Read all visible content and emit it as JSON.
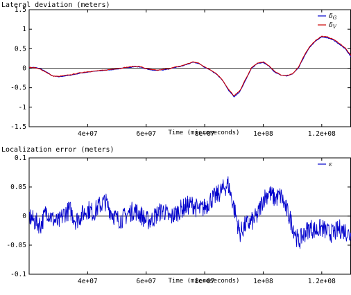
{
  "colors": {
    "series_g": "#0000cc",
    "series_v": "#cc0000",
    "axis": "#000000"
  },
  "chart_data": [
    {
      "type": "line",
      "title": "Lateral deviation (meters)",
      "xlabel": "Time (microseconds)",
      "ylabel": "",
      "xlim": [
        20000000,
        130000000
      ],
      "ylim": [
        -1.5,
        1.5
      ],
      "x_ticks": [
        40000000,
        60000000,
        80000000,
        100000000,
        120000000
      ],
      "x_tick_labels": [
        "4e+07",
        "6e+07",
        "8e+07",
        "1e+08",
        "1.2e+08"
      ],
      "y_ticks": [
        -1.5,
        -1,
        -0.5,
        0,
        0.5,
        1,
        1.5
      ],
      "y_tick_labels": [
        "-1.5",
        "-1",
        "-0.5",
        "0",
        "0.5",
        "1",
        "1.5"
      ],
      "zero_line": true,
      "grid": false,
      "legend_position": "top-right",
      "series": [
        {
          "name": "δG",
          "legend_main": "δ",
          "legend_sub": "G",
          "color": "#0000cc",
          "x": [
            20000000,
            22000000,
            24000000,
            26000000,
            28000000,
            30000000,
            32000000,
            34000000,
            36000000,
            38000000,
            40000000,
            42000000,
            44000000,
            46000000,
            48000000,
            50000000,
            52000000,
            54000000,
            56000000,
            58000000,
            60000000,
            62000000,
            64000000,
            66000000,
            68000000,
            70000000,
            72000000,
            74000000,
            76000000,
            78000000,
            80000000,
            82000000,
            84000000,
            86000000,
            88000000,
            90000000,
            92000000,
            94000000,
            96000000,
            98000000,
            100000000,
            102000000,
            104000000,
            106000000,
            108000000,
            110000000,
            112000000,
            114000000,
            116000000,
            118000000,
            120000000,
            122000000,
            124000000,
            126000000,
            128000000,
            130000000
          ],
          "y": [
            0.02,
            0.02,
            -0.02,
            -0.1,
            -0.2,
            -0.22,
            -0.2,
            -0.18,
            -0.15,
            -0.12,
            -0.1,
            -0.08,
            -0.07,
            -0.05,
            -0.04,
            -0.02,
            0.0,
            0.02,
            0.04,
            0.03,
            -0.02,
            -0.05,
            -0.05,
            -0.04,
            -0.02,
            0.02,
            0.05,
            0.1,
            0.15,
            0.12,
            0.02,
            -0.05,
            -0.15,
            -0.3,
            -0.55,
            -0.73,
            -0.6,
            -0.3,
            0.0,
            0.12,
            0.15,
            0.05,
            -0.1,
            -0.18,
            -0.2,
            -0.15,
            0.0,
            0.3,
            0.55,
            0.7,
            0.8,
            0.78,
            0.72,
            0.62,
            0.5,
            0.3
          ]
        },
        {
          "name": "δV",
          "legend_main": "δ",
          "legend_sub": "V",
          "color": "#cc0000",
          "x": [
            20000000,
            22000000,
            24000000,
            26000000,
            28000000,
            30000000,
            32000000,
            34000000,
            36000000,
            38000000,
            40000000,
            42000000,
            44000000,
            46000000,
            48000000,
            50000000,
            52000000,
            54000000,
            56000000,
            58000000,
            60000000,
            62000000,
            64000000,
            66000000,
            68000000,
            70000000,
            72000000,
            74000000,
            76000000,
            78000000,
            80000000,
            82000000,
            84000000,
            86000000,
            88000000,
            90000000,
            92000000,
            94000000,
            96000000,
            98000000,
            100000000,
            102000000,
            104000000,
            106000000,
            108000000,
            110000000,
            112000000,
            114000000,
            116000000,
            118000000,
            120000000,
            122000000,
            124000000,
            126000000,
            128000000,
            130000000
          ],
          "y": [
            0.02,
            0.01,
            -0.03,
            -0.11,
            -0.2,
            -0.21,
            -0.19,
            -0.17,
            -0.14,
            -0.11,
            -0.09,
            -0.08,
            -0.06,
            -0.05,
            -0.03,
            -0.01,
            0.01,
            0.03,
            0.05,
            0.04,
            -0.01,
            -0.04,
            -0.05,
            -0.03,
            -0.01,
            0.03,
            0.06,
            0.11,
            0.16,
            0.13,
            0.03,
            -0.04,
            -0.14,
            -0.29,
            -0.53,
            -0.71,
            -0.58,
            -0.28,
            0.01,
            0.13,
            0.16,
            0.06,
            -0.09,
            -0.17,
            -0.19,
            -0.14,
            0.02,
            0.32,
            0.57,
            0.72,
            0.82,
            0.8,
            0.74,
            0.64,
            0.52,
            0.32
          ]
        }
      ]
    },
    {
      "type": "line",
      "title": "Localization error (meters)",
      "xlabel": "Time (microseconds)",
      "ylabel": "",
      "xlim": [
        20000000,
        130000000
      ],
      "ylim": [
        -0.1,
        0.1
      ],
      "x_ticks": [
        40000000,
        60000000,
        80000000,
        100000000,
        120000000
      ],
      "x_tick_labels": [
        "4e+07",
        "6e+07",
        "8e+07",
        "1e+08",
        "1.2e+08"
      ],
      "y_ticks": [
        -0.1,
        -0.05,
        0,
        0.05,
        0.1
      ],
      "y_tick_labels": [
        "-0.1",
        "-0.05",
        "0",
        "0.05",
        "0.1"
      ],
      "zero_line": true,
      "grid": false,
      "legend_position": "top-right",
      "series": [
        {
          "name": "ε",
          "legend_main": "ε",
          "legend_sub": "",
          "color": "#0000cc",
          "x": [
            20000000,
            22000000,
            24000000,
            26000000,
            28000000,
            30000000,
            32000000,
            34000000,
            36000000,
            38000000,
            40000000,
            42000000,
            44000000,
            46000000,
            48000000,
            50000000,
            52000000,
            54000000,
            56000000,
            58000000,
            60000000,
            62000000,
            64000000,
            66000000,
            68000000,
            70000000,
            72000000,
            74000000,
            76000000,
            78000000,
            80000000,
            82000000,
            84000000,
            86000000,
            88000000,
            90000000,
            92000000,
            94000000,
            96000000,
            98000000,
            100000000,
            102000000,
            104000000,
            106000000,
            108000000,
            110000000,
            112000000,
            114000000,
            116000000,
            118000000,
            120000000,
            122000000,
            124000000,
            126000000,
            128000000,
            130000000
          ],
          "y": [
            0.0,
            -0.01,
            -0.015,
            0.01,
            -0.005,
            -0.012,
            0.005,
            0.01,
            -0.008,
            0.002,
            0.012,
            0.006,
            0.018,
            0.025,
            0.008,
            -0.006,
            -0.004,
            0.005,
            0.01,
            0.003,
            -0.008,
            -0.006,
            0.005,
            0.01,
            -0.004,
            0.004,
            0.012,
            0.018,
            0.02,
            0.01,
            0.015,
            0.028,
            0.035,
            0.045,
            0.055,
            0.015,
            -0.03,
            -0.015,
            -0.01,
            0.0,
            0.03,
            0.04,
            0.03,
            0.035,
            0.01,
            -0.015,
            -0.045,
            -0.03,
            -0.02,
            -0.025,
            -0.02,
            -0.028,
            -0.03,
            -0.022,
            -0.025,
            -0.035
          ]
        }
      ]
    }
  ]
}
